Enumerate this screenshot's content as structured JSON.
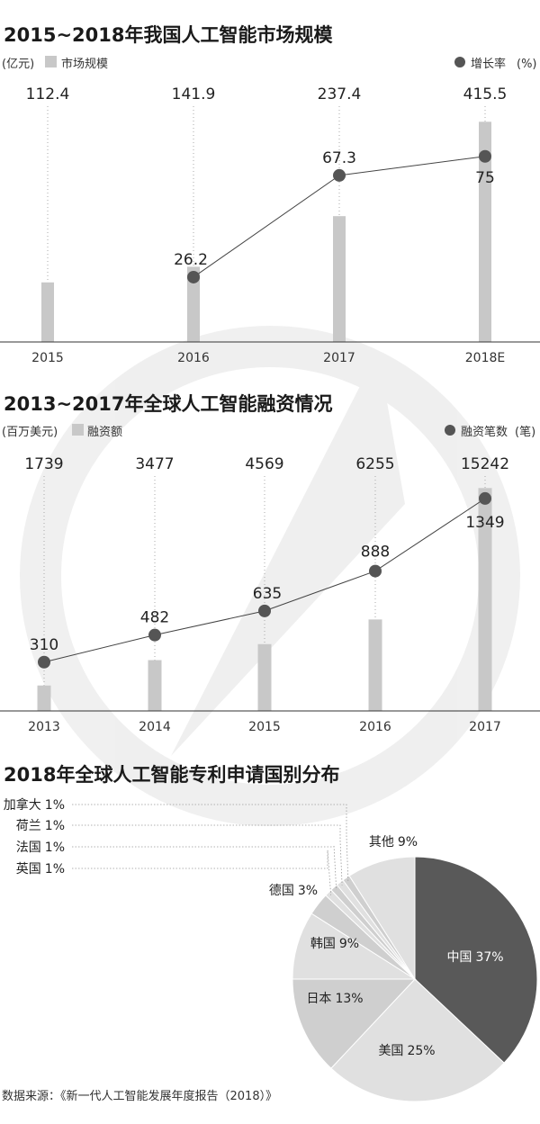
{
  "colors": {
    "bar": "#c8c8c8",
    "point": "#555555",
    "axis": "#333333",
    "pie_dark": "#595959",
    "pie_mid": "#cfcfcf",
    "pie_light": "#e0e0e0"
  },
  "footer": {
    "source": "数据来源：《新一代人工智能发展年度报告（2018）》"
  },
  "chart_data": [
    {
      "type": "bar",
      "title": "2015~2018年我国人工智能市场规模",
      "unit_left": "(亿元)",
      "unit_right": "(%)",
      "bar_series_name": "市场规模",
      "line_series_name": "增长率",
      "categories": [
        "2015",
        "2016",
        "2017",
        "2018E"
      ],
      "bar_values": [
        112.4,
        141.9,
        237.4,
        415.5
      ],
      "bar_labels": [
        "112.4",
        "141.9",
        "237.4",
        "415.5"
      ],
      "line_values": [
        null,
        26.2,
        67.3,
        75
      ],
      "line_labels": [
        "",
        "26.2",
        "67.3",
        "75"
      ],
      "bar_ylim": [
        0,
        450
      ],
      "line_ylim": [
        0,
        100
      ]
    },
    {
      "type": "bar",
      "title": "2013~2017年全球人工智能融资情况",
      "unit_left": "(百万美元)",
      "unit_right": "(笔)",
      "bar_series_name": "融资额",
      "line_series_name": "融资笔数",
      "categories": [
        "2013",
        "2014",
        "2015",
        "2016",
        "2017"
      ],
      "bar_values": [
        1739,
        3477,
        4569,
        6255,
        15242
      ],
      "bar_labels": [
        "1739",
        "3477",
        "4569",
        "6255",
        "15242"
      ],
      "line_values": [
        310,
        482,
        635,
        888,
        1349
      ],
      "line_labels": [
        "310",
        "482",
        "635",
        "888",
        "1349"
      ],
      "bar_ylim": [
        0,
        16000
      ],
      "line_ylim": [
        0,
        1600
      ]
    },
    {
      "type": "pie",
      "title": "2018年全球人工智能专利申请国别分布",
      "slices": [
        {
          "label": "中国",
          "value": 37,
          "text": "37%",
          "tone": "dark"
        },
        {
          "label": "美国",
          "value": 25,
          "text": "25%",
          "tone": "light"
        },
        {
          "label": "日本",
          "value": 13,
          "text": "13%",
          "tone": "mid"
        },
        {
          "label": "韩国",
          "value": 9,
          "text": "9%",
          "tone": "light"
        },
        {
          "label": "德国",
          "value": 3,
          "text": "3%",
          "tone": "mid"
        },
        {
          "label": "英国",
          "value": 1,
          "text": "1%",
          "tone": "light"
        },
        {
          "label": "法国",
          "value": 1,
          "text": "1%",
          "tone": "mid"
        },
        {
          "label": "荷兰",
          "value": 1,
          "text": "1%",
          "tone": "light"
        },
        {
          "label": "加拿大",
          "value": 1,
          "text": "1%",
          "tone": "mid"
        },
        {
          "label": "其他",
          "value": 9,
          "text": "9%",
          "tone": "light"
        }
      ]
    }
  ]
}
